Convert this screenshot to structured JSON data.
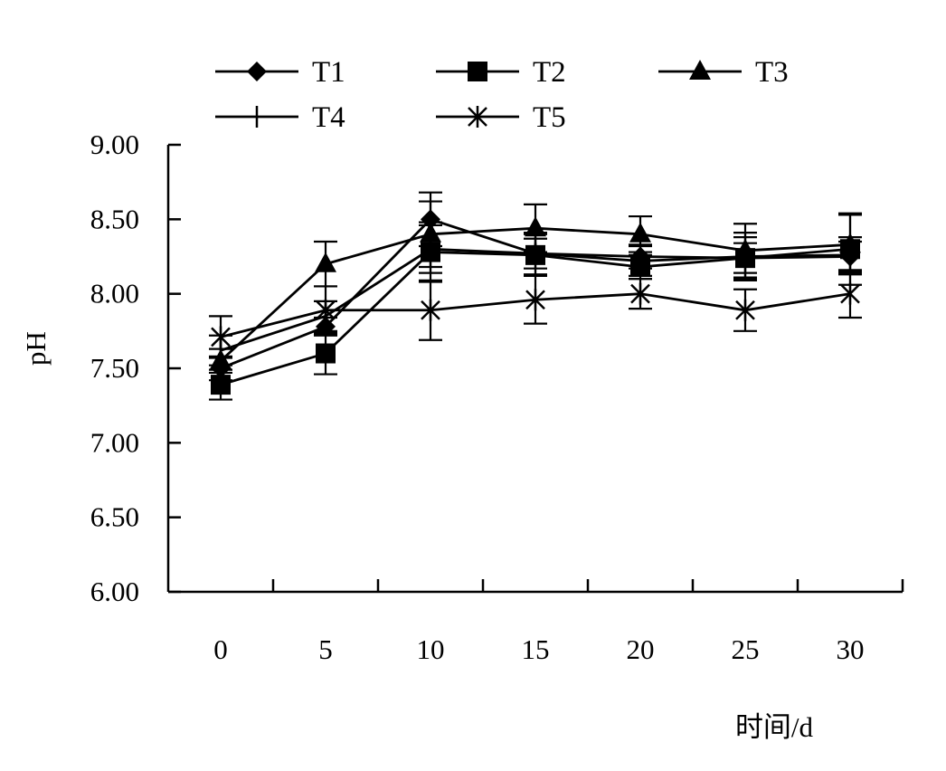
{
  "chart_data": {
    "type": "line",
    "title": "",
    "xlabel": "时间/d",
    "ylabel": "pH",
    "x": [
      0,
      5,
      10,
      15,
      20,
      25,
      30
    ],
    "x_tick_labels": [
      "0",
      "5",
      "10",
      "15",
      "20",
      "25",
      "30"
    ],
    "ylim": [
      6.0,
      9.0
    ],
    "y_ticks": [
      6.0,
      6.5,
      7.0,
      7.5,
      8.0,
      8.5,
      9.0
    ],
    "y_tick_labels": [
      "6.00",
      "6.50",
      "7.00",
      "7.50",
      "8.00",
      "8.50",
      "9.00"
    ],
    "grid": false,
    "legend_position": "top",
    "series": [
      {
        "name": "T1",
        "marker": "diamond",
        "values": [
          7.5,
          7.78,
          8.5,
          8.27,
          8.25,
          8.24,
          8.25
        ],
        "error": [
          0.08,
          0.06,
          0.18,
          0.1,
          0.08,
          0.1,
          0.1
        ]
      },
      {
        "name": "T2",
        "marker": "square",
        "values": [
          7.39,
          7.6,
          8.28,
          8.26,
          8.18,
          8.24,
          8.3
        ],
        "error": [
          0.1,
          0.14,
          0.2,
          0.14,
          0.08,
          0.14,
          0.24
        ]
      },
      {
        "name": "T3",
        "marker": "triangle",
        "values": [
          7.55,
          8.2,
          8.4,
          8.44,
          8.4,
          8.29,
          8.33
        ],
        "error": [
          0.08,
          0.15,
          0.22,
          0.16,
          0.12,
          0.18,
          0.2
        ]
      },
      {
        "name": "T4",
        "marker": "plus",
        "values": [
          7.62,
          7.85,
          8.3,
          8.27,
          8.22,
          8.25,
          8.26
        ],
        "error": [
          0.1,
          0.1,
          0.16,
          0.14,
          0.1,
          0.16,
          0.12
        ]
      },
      {
        "name": "T5",
        "marker": "star",
        "values": [
          7.71,
          7.89,
          7.89,
          7.96,
          8.0,
          7.89,
          8.0
        ],
        "error": [
          0.14,
          0.16,
          0.2,
          0.16,
          0.1,
          0.14,
          0.16
        ]
      }
    ]
  }
}
